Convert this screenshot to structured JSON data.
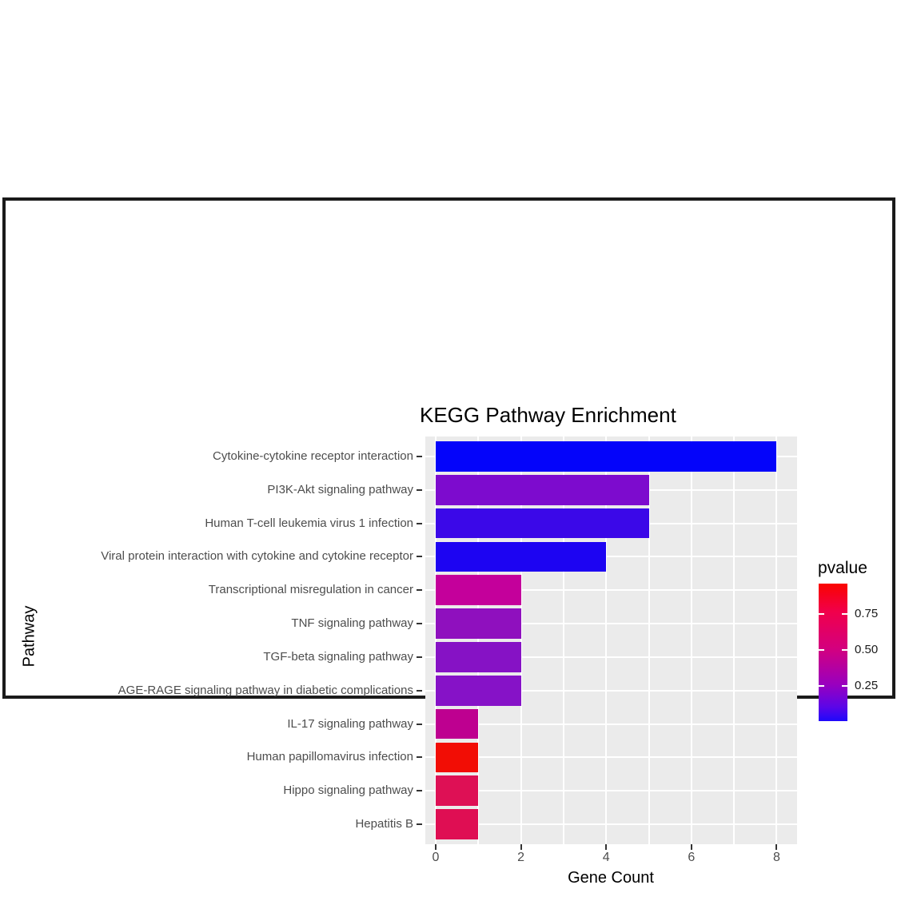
{
  "chart_data": {
    "type": "bar",
    "orientation": "horizontal",
    "title": "KEGG Pathway Enrichment",
    "xlabel": "Gene Count",
    "ylabel": "Pathway",
    "xlim": [
      0,
      8
    ],
    "x_ticks": [
      0,
      2,
      4,
      6,
      8
    ],
    "grid": "white gridlines on gray panel (ggplot2 theme_grey)",
    "panel_bg": "#EBEBEB",
    "categories": [
      "Cytokine-cytokine receptor interaction",
      "PI3K-Akt signaling pathway",
      "Human T-cell leukemia virus 1 infection",
      "Viral protein interaction with cytokine and cytokine receptor",
      "Transcriptional misregulation in cancer",
      "TNF signaling pathway",
      "TGF-beta signaling pathway",
      "AGE-RAGE signaling pathway in diabetic complications",
      "IL-17 signaling pathway",
      "Human papillomavirus infection",
      "Hippo signaling pathway",
      "Hepatitis B"
    ],
    "values": [
      8,
      5,
      5,
      4,
      2,
      2,
      2,
      2,
      1,
      1,
      1,
      1
    ],
    "bar_colors": [
      "#0404FA",
      "#7D0BCE",
      "#3B08E8",
      "#1D04F2",
      "#C4009B",
      "#8F10BE",
      "#8612C5",
      "#8612C7",
      "#BE0090",
      "#F20D05",
      "#DE1055",
      "#DF0E53"
    ],
    "legend": {
      "title": "pvalue",
      "tick_labels": [
        "0.75",
        "0.50",
        "0.25"
      ],
      "gradient_stops": [
        {
          "pos": 0.0,
          "color": "#FA0400"
        },
        {
          "pos": 0.2,
          "color": "#F1004A"
        },
        {
          "pos": 0.47,
          "color": "#D4007E"
        },
        {
          "pos": 0.73,
          "color": "#9A00BE"
        },
        {
          "pos": 0.9,
          "color": "#5A06E8"
        },
        {
          "pos": 1.0,
          "color": "#1E09FB"
        }
      ],
      "high_color": "#FA0400",
      "low_color": "#1E09FB",
      "position": "right"
    },
    "style": {
      "axis_text_color": "#4D4D4D",
      "axis_tick_color": "#333333",
      "title_color": "#000000"
    }
  }
}
